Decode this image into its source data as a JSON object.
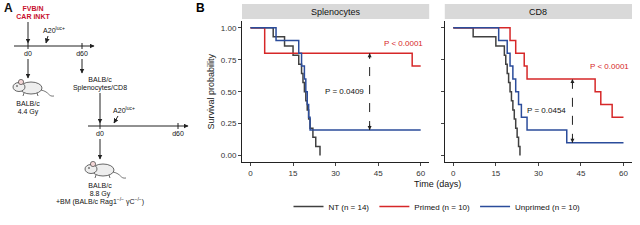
{
  "panel_a": {
    "label": "A",
    "donor": [
      "FVB/N",
      "CAR iNKT"
    ],
    "tumor_1": [
      {
        "t": "A20"
      },
      {
        "t": "luc+",
        "sup": true
      }
    ],
    "timeline_1": {
      "start": "d0",
      "end": "d60"
    },
    "recipient_1": [
      [
        {
          "t": "BALB/c"
        }
      ],
      [
        {
          "t": "4.4 Gy"
        }
      ]
    ],
    "transfer": [
      "BALB/c",
      "Splenocytes/CD8"
    ],
    "tumor_2": [
      {
        "t": "A20"
      },
      {
        "t": "luc+",
        "sup": true
      }
    ],
    "timeline_2": {
      "start": "d0",
      "end": "d60"
    },
    "recipient_2": [
      [
        {
          "t": "BALB/c"
        }
      ],
      [
        {
          "t": "8.8 Gy"
        }
      ],
      [
        {
          "t": "+BM (BALB/c Rag1"
        },
        {
          "t": "−/−",
          "sup": true
        },
        {
          "t": " γC"
        },
        {
          "t": "−/−",
          "sup": true
        },
        {
          "t": ")"
        }
      ]
    ]
  },
  "panel_b": {
    "label": "B",
    "x_label": "Time (days)",
    "y_label": "Survival probability",
    "legend": "bottom"
  },
  "chart_data": [
    {
      "type": "step",
      "title": "Splenocytes",
      "grid": false,
      "xlim": [
        -3,
        63
      ],
      "xticks": [
        0,
        15,
        30,
        45,
        60
      ],
      "ylim": [
        -0.05,
        1.05
      ],
      "yticks": [
        {
          "value": 0,
          "label": "0.00"
        },
        {
          "value": 0.25,
          "label": "0.25"
        },
        {
          "value": 0.5,
          "label": "0.50"
        },
        {
          "value": 0.75,
          "label": "0.75"
        },
        {
          "value": 1,
          "label": "1.00"
        }
      ],
      "series": [
        {
          "name": "NT (n = 14)",
          "color": "#404040",
          "x": [
            0,
            8,
            12,
            15,
            17,
            18,
            18.5,
            19,
            19.5,
            20,
            20.5,
            21,
            22,
            23,
            24.5
          ],
          "values": [
            1,
            0.929,
            0.857,
            0.786,
            0.714,
            0.643,
            0.571,
            0.5,
            0.429,
            0.357,
            0.286,
            0.214,
            0.143,
            0.071,
            0
          ]
        },
        {
          "name": "Primed (n = 10)",
          "color": "#d62728",
          "x": [
            0,
            5,
            57,
            60
          ],
          "values": [
            1,
            0.8,
            0.7,
            0.7
          ]
        },
        {
          "name": "Unprimed (n = 10)",
          "color": "#2b4c9b",
          "x": [
            0,
            9,
            17,
            18,
            19,
            19.5,
            20,
            20.5,
            21,
            60
          ],
          "values": [
            1,
            0.9,
            0.8,
            0.7,
            0.6,
            0.5,
            0.4,
            0.3,
            0.2,
            0.2
          ]
        }
      ],
      "annotations": [
        {
          "text": "P < 0.0001",
          "x": 54,
          "y": 0.88,
          "color": "#d62728"
        }
      ],
      "comparisons": [
        {
          "text": "P = 0.0409",
          "x": 42,
          "y0": 0.2,
          "y1": 0.8
        }
      ]
    },
    {
      "type": "step",
      "title": "CD8",
      "grid": false,
      "tick_labels": "x",
      "xlim": [
        -3,
        63
      ],
      "xticks": [
        0,
        15,
        30,
        45,
        60
      ],
      "ylim": [
        -0.05,
        1.05
      ],
      "yticks": [
        {
          "value": 0,
          "label": "0.00"
        },
        {
          "value": 0.25,
          "label": "0.25"
        },
        {
          "value": 0.5,
          "label": "0.50"
        },
        {
          "value": 0.75,
          "label": "0.75"
        },
        {
          "value": 1,
          "label": "1.00"
        }
      ],
      "series": [
        {
          "color": "#404040",
          "x": [
            0,
            7,
            15,
            18,
            18.5,
            19,
            19.5,
            20,
            20.5,
            21,
            21.5,
            22,
            22.5,
            23,
            23.5
          ],
          "values": [
            1,
            0.929,
            0.857,
            0.786,
            0.714,
            0.643,
            0.571,
            0.5,
            0.429,
            0.357,
            0.286,
            0.214,
            0.143,
            0.071,
            0
          ]
        },
        {
          "color": "#d62728",
          "x": [
            0,
            20,
            22,
            25,
            26,
            50,
            52,
            56,
            60
          ],
          "values": [
            1,
            0.9,
            0.8,
            0.7,
            0.6,
            0.5,
            0.4,
            0.3,
            0.3
          ]
        },
        {
          "color": "#2b4c9b",
          "x": [
            0,
            16,
            19,
            20,
            21,
            22,
            23,
            24,
            26,
            40,
            60
          ],
          "values": [
            1,
            0.9,
            0.8,
            0.7,
            0.6,
            0.5,
            0.4,
            0.3,
            0.2,
            0.1,
            0.1
          ]
        }
      ],
      "annotations": [
        {
          "text": "P < 0.0001",
          "x": 55,
          "y": 0.7,
          "color": "#d62728"
        }
      ],
      "comparisons": [
        {
          "text": "P = 0.0454",
          "x": 42,
          "y0": 0.1,
          "y1": 0.6
        }
      ]
    }
  ]
}
